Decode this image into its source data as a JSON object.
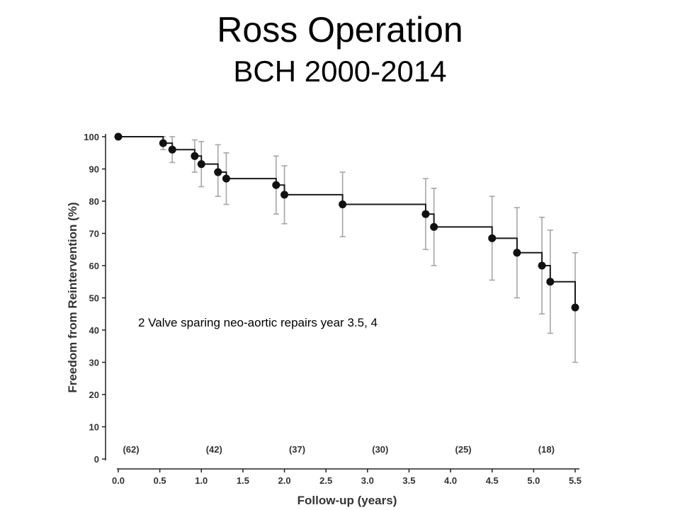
{
  "slide": {
    "title": "Ross Operation",
    "subtitle": "BCH 2000-2014"
  },
  "chart_data": {
    "type": "line",
    "step": true,
    "xlabel": "Follow-up (years)",
    "ylabel": "Freedom from Reintervention (%)",
    "xlim": [
      0,
      5.5
    ],
    "ylim": [
      0,
      100
    ],
    "x_ticks": [
      "0.0",
      "0.5",
      "1.0",
      "1.5",
      "2.0",
      "2.5",
      "3.0",
      "3.5",
      "4.0",
      "4.5",
      "5.0",
      "5.5"
    ],
    "y_ticks": [
      "0",
      "10",
      "20",
      "30",
      "40",
      "50",
      "60",
      "70",
      "80",
      "90",
      "100"
    ],
    "grid": false,
    "line_color": "#1a1a1a",
    "error_bar_color": "#a6a6a6",
    "points": [
      {
        "x": 0.0,
        "y": 100,
        "lo": null,
        "hi": null
      },
      {
        "x": 0.54,
        "y": 98,
        "lo": 96,
        "hi": 100
      },
      {
        "x": 0.65,
        "y": 96,
        "lo": 92,
        "hi": 100
      },
      {
        "x": 0.92,
        "y": 94,
        "lo": 89,
        "hi": 99
      },
      {
        "x": 1.0,
        "y": 91.5,
        "lo": 84.5,
        "hi": 98.5
      },
      {
        "x": 1.2,
        "y": 89,
        "lo": 81.5,
        "hi": 97.5
      },
      {
        "x": 1.3,
        "y": 87,
        "lo": 79,
        "hi": 95
      },
      {
        "x": 1.9,
        "y": 85,
        "lo": 76,
        "hi": 94
      },
      {
        "x": 2.0,
        "y": 82,
        "lo": 73,
        "hi": 91
      },
      {
        "x": 2.7,
        "y": 79,
        "lo": 69,
        "hi": 89
      },
      {
        "x": 3.7,
        "y": 76,
        "lo": 65,
        "hi": 87
      },
      {
        "x": 3.8,
        "y": 72,
        "lo": 60,
        "hi": 84
      },
      {
        "x": 4.5,
        "y": 68.5,
        "lo": 55.5,
        "hi": 81.5
      },
      {
        "x": 4.8,
        "y": 64,
        "lo": 50,
        "hi": 78
      },
      {
        "x": 5.1,
        "y": 60,
        "lo": 45,
        "hi": 75
      },
      {
        "x": 5.2,
        "y": 55,
        "lo": 39,
        "hi": 71
      },
      {
        "x": 5.5,
        "y": 47,
        "lo": 30,
        "hi": 64
      }
    ],
    "at_risk": [
      {
        "x": 0.0,
        "label": "(62)"
      },
      {
        "x": 1.0,
        "label": "(42)"
      },
      {
        "x": 2.0,
        "label": "(37)"
      },
      {
        "x": 3.0,
        "label": "(30)"
      },
      {
        "x": 4.0,
        "label": "(25)"
      },
      {
        "x": 5.0,
        "label": "(18)"
      }
    ],
    "annotation": "2 Valve sparing neo-aortic repairs year 3.5, 4"
  }
}
